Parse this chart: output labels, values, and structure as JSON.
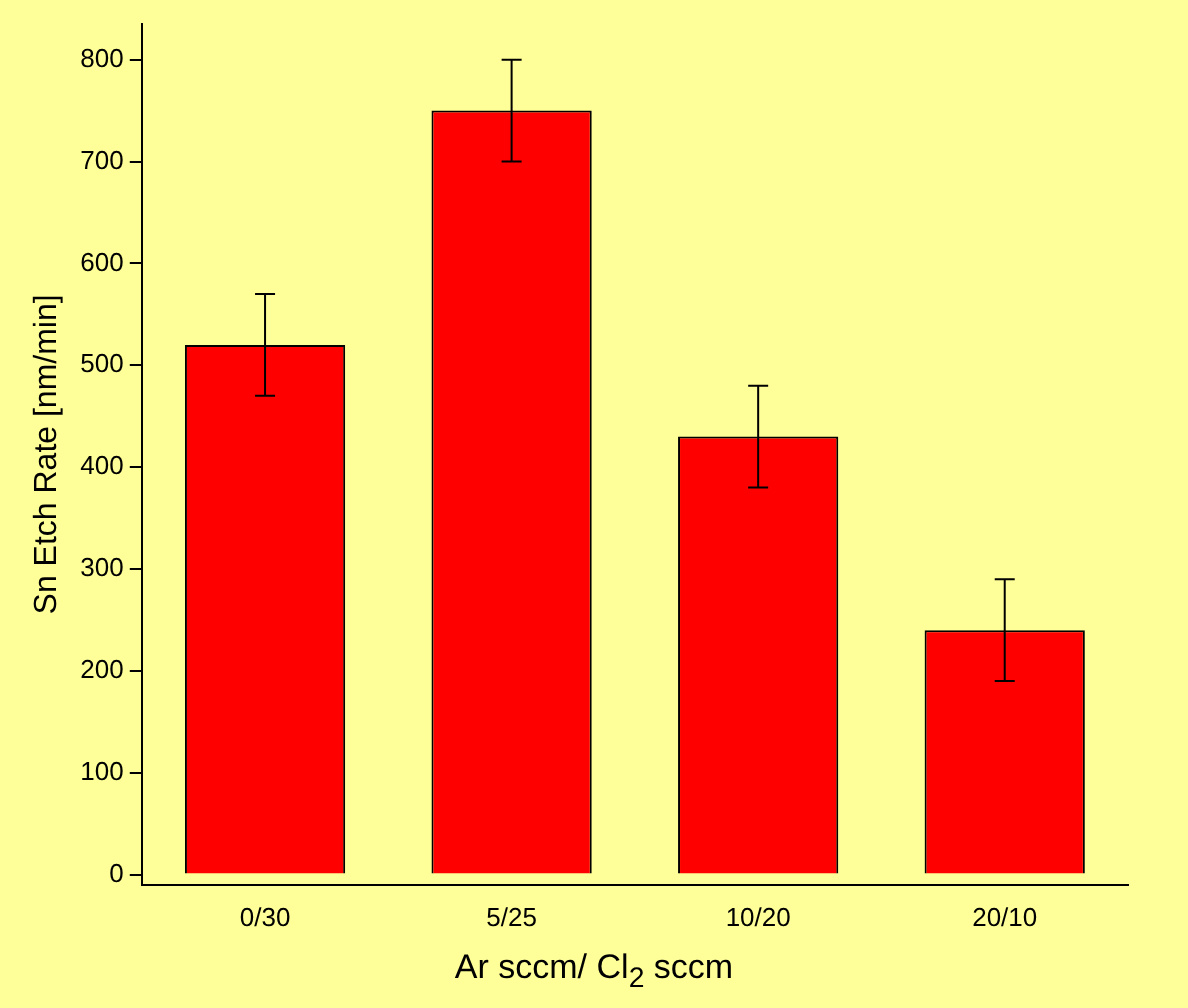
{
  "chart_data": {
    "type": "bar",
    "xlabel": "Ar sccm/ Cl$_{2}$ sccm",
    "ylabel": "Sn Etch Rate [nm/min]",
    "categories": [
      "0/30",
      "5/25",
      "10/20",
      "20/10"
    ],
    "values": [
      520,
      750,
      430,
      240
    ],
    "errors": [
      50,
      50,
      50,
      50
    ],
    "color": "#ff0000",
    "ylim": [
      -10,
      835
    ],
    "yticks": [
      0,
      100,
      200,
      300,
      400,
      500,
      600,
      700,
      800
    ],
    "grid": false,
    "legend": false
  }
}
